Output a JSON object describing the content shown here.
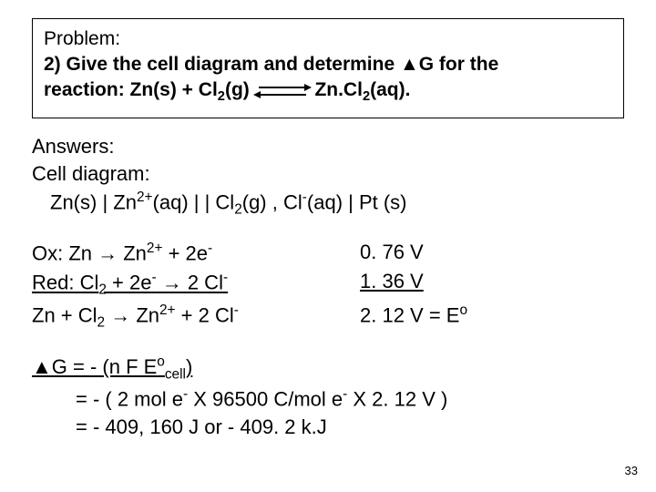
{
  "problem": {
    "title": "Problem:",
    "line1_pre": "2) Give the cell diagram and determine ▲G for the",
    "line2_reaction_prefix": "reaction:   Zn(s)  +  Cl",
    "line2_reaction_sub1": "2",
    "line2_reaction_g": "(g)  ",
    "line2_product": " Zn.Cl",
    "line2_sub2": "2",
    "line2_aq": "(aq)."
  },
  "answers": {
    "label": "Answers:",
    "cell_label": "Cell diagram:",
    "cell_diagram_parts": {
      "p1": "Zn(s) | Zn",
      "p2": "2+",
      "p3": "(aq)  | |  Cl",
      "p4": "2",
      "p5": "(g) , Cl",
      "p6": "-",
      "p7": "(aq) | Pt (s)"
    }
  },
  "reactions": {
    "ox": {
      "left_parts": {
        "p1": "Ox:   Zn  →  Zn",
        "p2": "2+",
        "p3": "  +  2e",
        "p4": "-"
      },
      "right": "0. 76 V"
    },
    "red": {
      "left_parts": {
        "p1": "Red: Cl",
        "p2": "2",
        "p3": "  +  2e",
        "p4": "-",
        "p5": "  →  2 Cl",
        "p6": "-"
      },
      "right": "1. 36 V"
    },
    "net": {
      "left_parts": {
        "p1": "Zn  +  Cl",
        "p2": "2",
        "p3": "  →  Zn",
        "p4": "2+",
        "p5": "  +  2 Cl",
        "p6": "-"
      },
      "right_parts": {
        "p1": "2. 12 V = E",
        "p2": "o"
      }
    }
  },
  "deltaG": {
    "line1": {
      "p1": "▲G = - (n F E",
      "p2": "o",
      "p3": "cell",
      "p4": ")"
    },
    "line2": {
      "p1": "= - ( 2 mol e",
      "p2": "-",
      "p3": " X 96500 C/mol e",
      "p4": "-",
      "p5": " X 2. 12 V )"
    },
    "line3": "= - 409, 160 J   or   - 409. 2 k.J"
  },
  "pageNum": "33"
}
